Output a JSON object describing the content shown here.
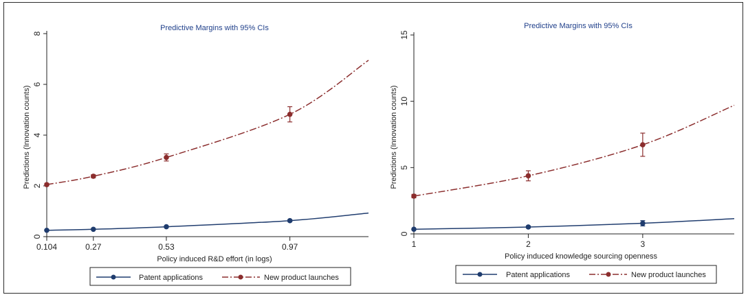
{
  "colors": {
    "patent": "#1f3c6e",
    "product": "#8b2d2d",
    "title": "#1f3f8a"
  },
  "legend": {
    "patent_label": "Patent applications",
    "product_label": "New product launches"
  },
  "chart_data": [
    {
      "type": "line",
      "title": "Predictive Margins with 95% CIs",
      "xlabel": "Policy induced R&D effort (in logs)",
      "ylabel": "Predictions (Innovation counts)",
      "xlim": [
        0.104,
        1.25
      ],
      "ylim": [
        0,
        8
      ],
      "x_ticks": [
        0.104,
        0.27,
        0.53,
        0.97
      ],
      "x_tick_labels": [
        "0.104",
        "0.27",
        "0.53",
        "0.97"
      ],
      "y_ticks": [
        0,
        2,
        4,
        6,
        8
      ],
      "y_tick_labels": [
        "0",
        "2",
        "4",
        "6",
        "8"
      ],
      "grid": false,
      "legend_position": "bottom",
      "series": [
        {
          "name": "Patent applications",
          "style": "solid",
          "marked_x": [
            0.104,
            0.27,
            0.53,
            0.97
          ],
          "marked_y": [
            0.25,
            0.29,
            0.39,
            0.63
          ],
          "ci_low": [
            0.23,
            0.27,
            0.36,
            0.59
          ],
          "ci_high": [
            0.27,
            0.31,
            0.42,
            0.67
          ],
          "curve_x": [
            0.104,
            0.27,
            0.53,
            0.97,
            1.25
          ],
          "curve_y": [
            0.25,
            0.29,
            0.39,
            0.63,
            0.93
          ]
        },
        {
          "name": "New product launches",
          "style": "dashdot",
          "marked_x": [
            0.104,
            0.27,
            0.53,
            0.97
          ],
          "marked_y": [
            2.05,
            2.38,
            3.12,
            4.82
          ],
          "ci_low": [
            2.0,
            2.32,
            2.98,
            4.52
          ],
          "ci_high": [
            2.1,
            2.44,
            3.26,
            5.12
          ],
          "curve_x": [
            0.104,
            0.27,
            0.53,
            0.97,
            1.25
          ],
          "curve_y": [
            2.05,
            2.38,
            3.12,
            4.82,
            6.95
          ]
        }
      ]
    },
    {
      "type": "line",
      "title": "Predictive Margins with 95% CIs",
      "xlabel": "Policy induced knowledge sourcing openness",
      "ylabel": "Predictions (Innovation counts)",
      "xlim": [
        1,
        3.8
      ],
      "ylim": [
        0,
        15
      ],
      "x_ticks": [
        1,
        2,
        3
      ],
      "x_tick_labels": [
        "1",
        "2",
        "3"
      ],
      "y_ticks": [
        0,
        5,
        10,
        15
      ],
      "y_tick_labels": [
        "0",
        "5",
        "10",
        "15"
      ],
      "grid": false,
      "legend_position": "bottom",
      "series": [
        {
          "name": "Patent applications",
          "style": "solid",
          "marked_x": [
            1,
            2,
            3
          ],
          "marked_y": [
            0.35,
            0.52,
            0.8
          ],
          "ci_low": [
            0.3,
            0.45,
            0.6
          ],
          "ci_high": [
            0.4,
            0.6,
            1.0
          ],
          "curve_x": [
            1,
            2,
            3,
            3.8
          ],
          "curve_y": [
            0.35,
            0.52,
            0.8,
            1.15
          ]
        },
        {
          "name": "New product launches",
          "style": "dashdot",
          "marked_x": [
            1,
            2,
            3
          ],
          "marked_y": [
            2.85,
            4.38,
            6.72
          ],
          "ci_low": [
            2.72,
            4.0,
            5.85
          ],
          "ci_high": [
            2.98,
            4.76,
            7.6
          ],
          "curve_x": [
            1,
            2,
            3,
            3.8
          ],
          "curve_y": [
            2.85,
            4.38,
            6.72,
            9.7
          ]
        }
      ]
    }
  ]
}
